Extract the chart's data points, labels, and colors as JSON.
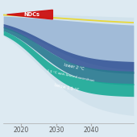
{
  "background_color": "#ddeaf2",
  "x_ticks": [
    2020,
    2030,
    2040
  ],
  "tick_fontsize": 5.5,
  "ndc_label": "NDCs",
  "label_lower2": "lower 2 °C",
  "label_15limited": "1.5 °C with limited overshoot",
  "label_below15": "below 1.5 °C",
  "yellow_line_color": "#e8d83a",
  "ndc_red": "#cc1111",
  "color_outer": "#c8dce8",
  "color_ndc_band": "#7a9cc8",
  "color_lower2": "#3a5a9a",
  "color_15limited": "#2a7a90",
  "color_below15": "#1aaa96"
}
